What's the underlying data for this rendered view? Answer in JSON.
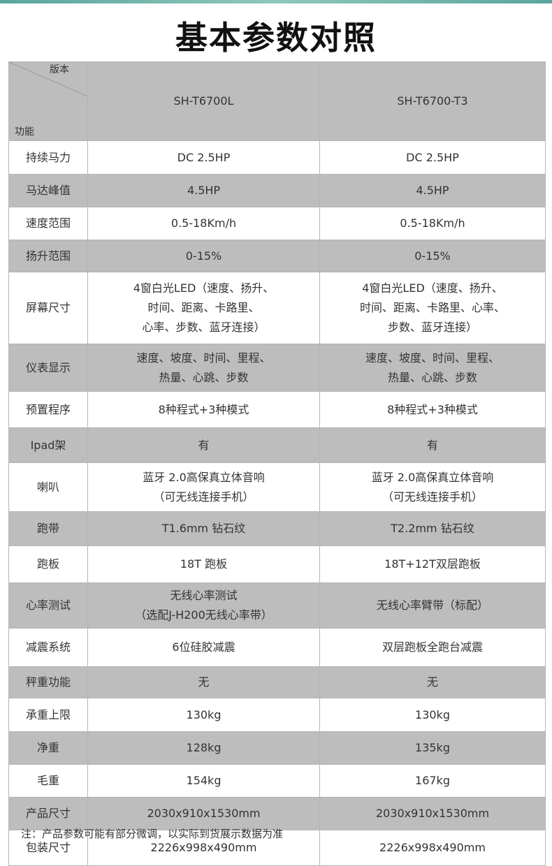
{
  "title": "基本参数对照",
  "header": {
    "version_label": "版本",
    "feature_label": "功能",
    "models": [
      "SH-T6700L",
      "SH-T6700-T3"
    ]
  },
  "rows": [
    {
      "feature": "持续马力",
      "a": "DC 2.5HP",
      "b": "DC 2.5HP"
    },
    {
      "feature": "马达峰值",
      "a": "4.5HP",
      "b": "4.5HP"
    },
    {
      "feature": "速度范围",
      "a": "0.5-18Km/h",
      "b": "0.5-18Km/h"
    },
    {
      "feature": "扬升范围",
      "a": "0-15%",
      "b": "0-15%"
    },
    {
      "feature": "屏幕尺寸",
      "a": "4窗白光LED（速度、扬升、\n时间、距离、卡路里、\n心率、步数、蓝牙连接）",
      "b": "4窗白光LED（速度、扬升、\n时间、距离、卡路里、心率、\n步数、蓝牙连接）"
    },
    {
      "feature": "仪表显示",
      "a": "速度、坡度、时间、里程、\n热量、心跳、步数",
      "b": "速度、坡度、时间、里程、\n热量、心跳、步数"
    },
    {
      "feature": "预置程序",
      "a": "8种程式+3种模式",
      "b": "8种程式+3种模式"
    },
    {
      "feature": "Ipad架",
      "a": "有",
      "b": "有"
    },
    {
      "feature": "喇叭",
      "a": "蓝牙 2.0高保真立体音响\n（可无线连接手机）",
      "b": "蓝牙 2.0高保真立体音响\n（可无线连接手机）"
    },
    {
      "feature": "跑带",
      "a": "T1.6mm 钻石纹",
      "b": "T2.2mm 钻石纹"
    },
    {
      "feature": "跑板",
      "a": "18T 跑板",
      "b": "18T+12T双层跑板"
    },
    {
      "feature": "心率测试",
      "a": "无线心率测试\n（选配J-H200无线心率带）",
      "b": "无线心率臂带（标配）"
    },
    {
      "feature": "减震系统",
      "a": "6位硅胶减震",
      "b": "双层跑板全跑台减震"
    },
    {
      "feature": "秤重功能",
      "a": "无",
      "b": "无"
    },
    {
      "feature": "承重上限",
      "a": "130kg",
      "b": "130kg"
    },
    {
      "feature": "净重",
      "a": "128kg",
      "b": "135kg"
    },
    {
      "feature": "毛重",
      "a": "154kg",
      "b": "167kg"
    },
    {
      "feature": "产品尺寸",
      "a": "2030x910x1530mm",
      "b": "2030x910x1530mm"
    },
    {
      "feature": "包装尺寸",
      "a": "2226x998x490mm",
      "b": "2226x998x490mm"
    }
  ],
  "colors": {
    "row_gray": "#bdbdbd",
    "border": "#b5b5b5",
    "stripe": "#5aa59b"
  },
  "note": "注：产品参数可能有部分微调，以实际到货展示数据为准"
}
